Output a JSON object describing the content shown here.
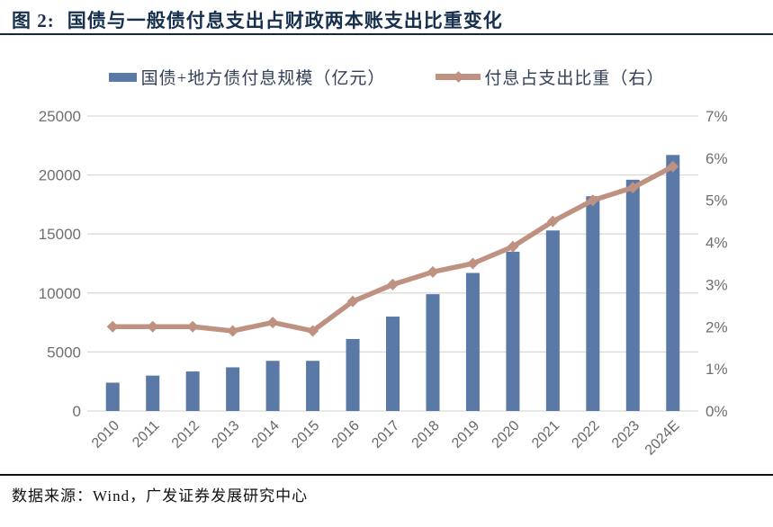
{
  "header": {
    "figure_label": "图 2:",
    "title": "国债与一般债付息支出占财政两本账支出比重变化"
  },
  "legend": [
    {
      "label": "国债+地方债付息规模（亿元）",
      "swatch": "bar-swatch",
      "color": "#5B79A6"
    },
    {
      "label": "付息占支出比重（右）",
      "swatch": "line-diamond-swatch",
      "color": "#BE9181"
    }
  ],
  "footer": {
    "source": "数据来源：Wind，广发证券发展研究中心"
  },
  "colors": {
    "bar": "#5B79A6",
    "line": "#BE9181",
    "gridline": "#D9D9D9",
    "axis_text": "#6F6F6F",
    "title_navy": "#16304E"
  },
  "chart_data": {
    "type": "bar",
    "subtype": "bar+line dual-axis combo",
    "title": "国债与一般债付息支出占财政两本账支出比重变化",
    "categories": [
      "2010",
      "2011",
      "2012",
      "2013",
      "2014",
      "2015",
      "2016",
      "2017",
      "2018",
      "2019",
      "2020",
      "2021",
      "2022",
      "2023",
      "2024E"
    ],
    "series": [
      {
        "name": "国债+地方债付息规模（亿元）",
        "type": "bar",
        "axis": "left",
        "color": "#5B79A6",
        "values": [
          2400,
          3000,
          3350,
          3700,
          4250,
          4250,
          6100,
          8000,
          9900,
          11700,
          13500,
          15300,
          18200,
          19600,
          21700
        ]
      },
      {
        "name": "付息占支出比重（右）",
        "type": "line",
        "axis": "right",
        "color": "#BE9181",
        "marker": "diamond",
        "values": [
          2.0,
          2.0,
          2.0,
          1.9,
          2.1,
          1.9,
          2.6,
          3.0,
          3.3,
          3.5,
          3.9,
          4.5,
          5.0,
          5.3,
          5.8
        ]
      }
    ],
    "left_axis": {
      "min": 0,
      "max": 25000,
      "step": 5000,
      "labels_top_down": [
        "25000",
        "20000",
        "15000",
        "10000",
        "5000",
        "0"
      ]
    },
    "right_axis": {
      "min": 0,
      "max": 7,
      "step": 1,
      "unit": "%",
      "labels_top_down": [
        "7%",
        "6%",
        "5%",
        "4%",
        "3%",
        "2%",
        "1%",
        "0%"
      ]
    },
    "grid": true,
    "legend_position": "top",
    "x_label_rotation_deg": 45
  }
}
